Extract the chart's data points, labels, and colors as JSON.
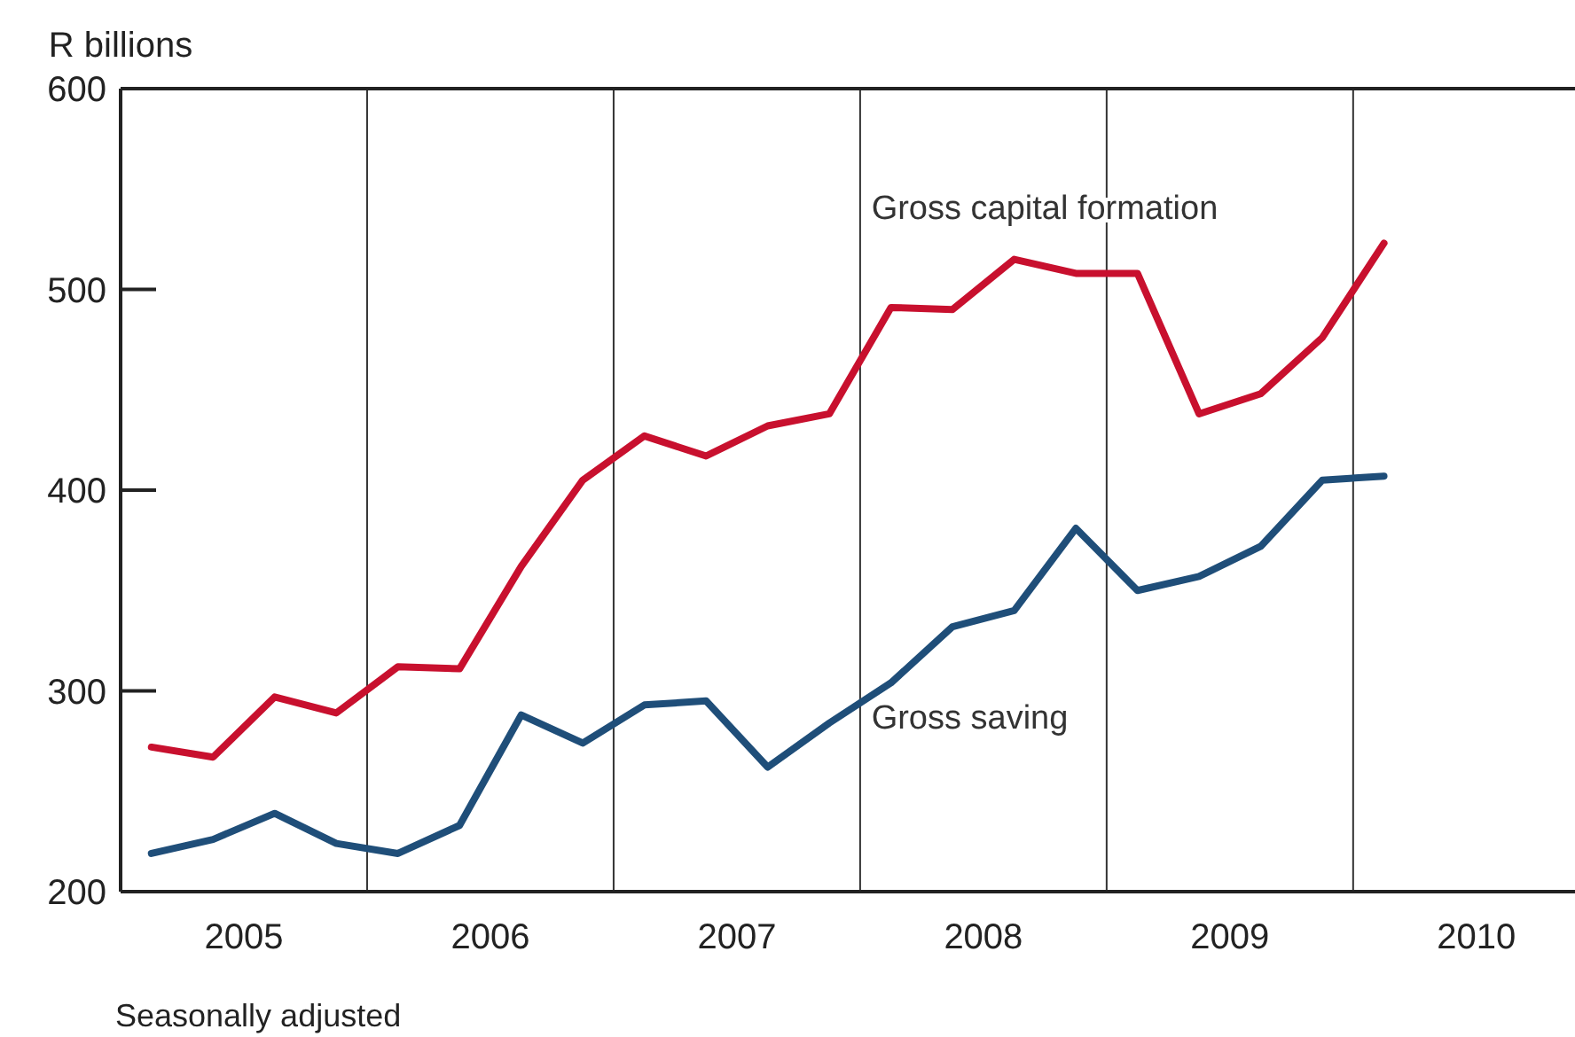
{
  "chart_data": {
    "type": "line",
    "ylabel": "R billions",
    "annotations": [
      "Seasonally adjusted"
    ],
    "x": [
      2005.125,
      2005.375,
      2005.625,
      2005.875,
      2006.125,
      2006.375,
      2006.625,
      2006.875,
      2007.125,
      2007.375,
      2007.625,
      2007.875,
      2008.125,
      2008.375,
      2008.625,
      2008.875,
      2009.125,
      2009.375,
      2009.625,
      2009.875,
      2010.125
    ],
    "series": [
      {
        "name": "Gross capital formation",
        "color": "#c8102e",
        "values": [
          272,
          267,
          297,
          289,
          312,
          311,
          362,
          405,
          427,
          417,
          432,
          438,
          491,
          490,
          515,
          508,
          508,
          438,
          448,
          476,
          523
        ]
      },
      {
        "name": "Gross saving",
        "color": "#1f4e79",
        "values": [
          219,
          226,
          239,
          224,
          219,
          233,
          288,
          274,
          293,
          295,
          262,
          284,
          304,
          332,
          340,
          381,
          350,
          357,
          372,
          405,
          407
        ]
      }
    ],
    "xlim": [
      2005,
      2010.9
    ],
    "xticks": [
      {
        "value": 2005.5,
        "label": "2005"
      },
      {
        "value": 2006.5,
        "label": "2006"
      },
      {
        "value": 2007.5,
        "label": "2007"
      },
      {
        "value": 2008.5,
        "label": "2008"
      },
      {
        "value": 2009.5,
        "label": "2009"
      },
      {
        "value": 2010.5,
        "label": "2010"
      }
    ],
    "ylim": [
      200,
      600
    ],
    "yticks": [
      200,
      300,
      400,
      500,
      600
    ],
    "ref_lines": [
      {
        "axis": "x",
        "value": 2006
      },
      {
        "axis": "x",
        "value": 2007
      },
      {
        "axis": "x",
        "value": 2008
      },
      {
        "axis": "x",
        "value": 2009
      },
      {
        "axis": "x",
        "value": 2010
      }
    ],
    "grid": false,
    "marker": "none",
    "line_style": "solid"
  }
}
